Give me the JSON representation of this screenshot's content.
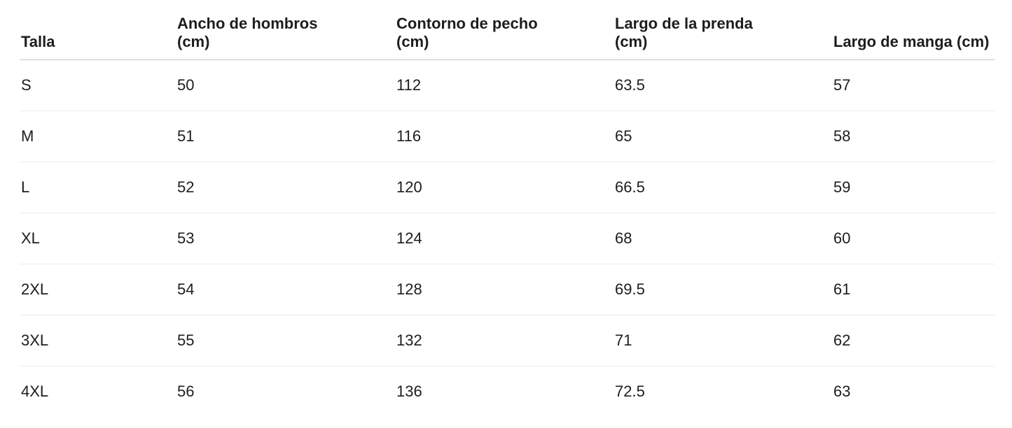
{
  "table": {
    "headers": [
      "Talla",
      "Ancho de hombros (cm)",
      "Contorno de pecho (cm)",
      "Largo de la prenda (cm)",
      "Largo de manga (cm)"
    ],
    "rows": [
      [
        "S",
        50,
        112,
        63.5,
        57
      ],
      [
        "M",
        51,
        116,
        65,
        58
      ],
      [
        "L",
        52,
        120,
        66.5,
        59
      ],
      [
        "XL",
        53,
        124,
        68,
        60
      ],
      [
        "2XL",
        54,
        128,
        69.5,
        61
      ],
      [
        "3XL",
        55,
        132,
        71,
        62
      ],
      [
        "4XL",
        56,
        136,
        72.5,
        63
      ]
    ]
  }
}
